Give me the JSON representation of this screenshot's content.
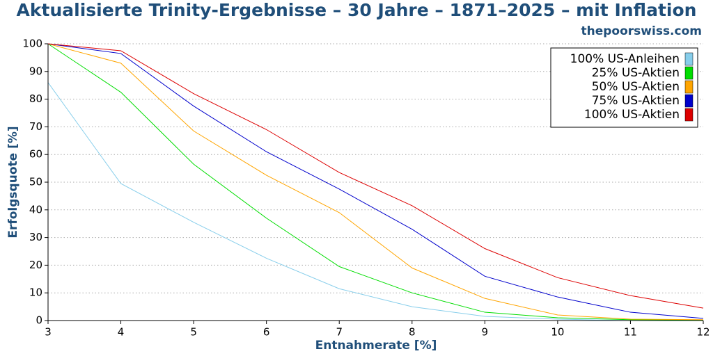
{
  "chart_data": {
    "type": "line",
    "title": "Aktualisierte Trinity-Ergebnisse – 30 Jahre – 1871–2025 – mit Inflation",
    "subtitle": "thepoorswiss.com",
    "x_label": "Entnahmerate [%]",
    "y_label": "Erfolgsquote [%]",
    "x": [
      3,
      4,
      5,
      6,
      7,
      8,
      9,
      10,
      11,
      12
    ],
    "series": [
      {
        "name": "100% US-Anleihen",
        "color": "#87ceeb",
        "values": [
          86,
          49.5,
          35.5,
          22.5,
          11.5,
          5,
          1.5,
          0.5,
          0,
          0
        ]
      },
      {
        "name": "25% US-Aktien",
        "color": "#00dd00",
        "values": [
          100,
          82.5,
          56.5,
          37,
          19.5,
          10,
          3,
          1,
          0.3,
          0.2
        ]
      },
      {
        "name": "50% US-Aktien",
        "color": "#ffa500",
        "values": [
          100,
          93,
          68.5,
          52.5,
          39,
          19,
          8,
          2,
          0.5,
          0.3
        ]
      },
      {
        "name": "75% US-Aktien",
        "color": "#0000cc",
        "values": [
          100,
          96.5,
          77.5,
          61,
          47.5,
          33,
          16,
          8.5,
          3,
          0.8
        ]
      },
      {
        "name": "100% US-Aktien",
        "color": "#dd0000",
        "values": [
          100,
          97.5,
          82,
          69,
          53.5,
          41.5,
          26,
          15.5,
          9,
          4.5
        ]
      }
    ],
    "xlim": [
      3,
      12
    ],
    "xticks": [
      3,
      4,
      5,
      6,
      7,
      8,
      9,
      10,
      11,
      12
    ],
    "ylim": [
      0,
      100
    ],
    "yticks": [
      0,
      10,
      20,
      30,
      40,
      50,
      60,
      70,
      80,
      90,
      100
    ],
    "grid": true,
    "legend_position": "upper right"
  }
}
